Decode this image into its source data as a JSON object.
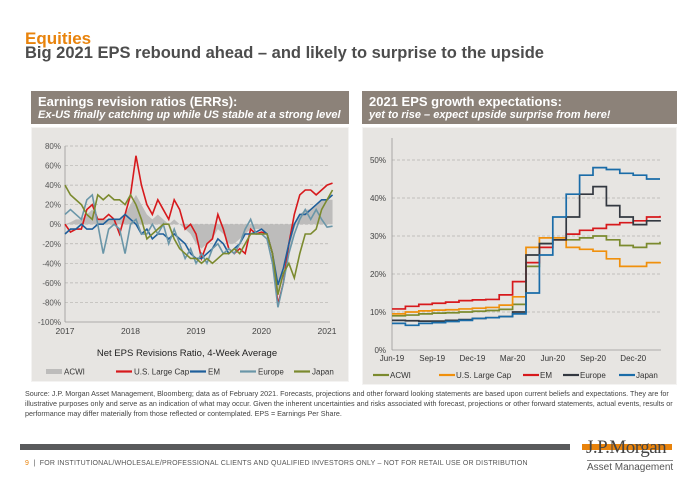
{
  "header": {
    "kicker": "Equities",
    "headline": "Big 2021 EPS rebound ahead – and likely to surprise to the upside"
  },
  "left_panel": {
    "title": "Earnings revision ratios (ERRs):",
    "subtitle": "Ex-US finally catching up while US stable at a strong level"
  },
  "right_panel": {
    "title": "2021 EPS growth expectations:",
    "subtitle": "yet to rise – expect upside surprise from here!"
  },
  "colors": {
    "acwi_area": "#bdbcbb",
    "us": "#d7191c",
    "em": "#1f5f9b",
    "europe": "#6a96a8",
    "japan": "#7b8a2e",
    "acwi_line": "#7b8a2e",
    "us_orange": "#f0900c",
    "europe_dark": "#333840",
    "japan_blue": "#1a6ca8"
  },
  "chart_data": [
    {
      "type": "line",
      "title": "Net EPS Revisions Ratio, 4-Week Average",
      "xlabel": "",
      "ylabel": "",
      "ylim": [
        -100,
        80
      ],
      "yticks": [
        "80%",
        "60%",
        "40%",
        "20%",
        "0%",
        "-20%",
        "-40%",
        "-60%",
        "-80%",
        "-100%"
      ],
      "ytick_values": [
        80,
        60,
        40,
        20,
        0,
        -20,
        -40,
        -60,
        -80,
        -100
      ],
      "xticks": [
        "2017",
        "2018",
        "2019",
        "2020",
        "2021"
      ],
      "x_start": "2017-01",
      "x_step": "month",
      "grid": true,
      "legend": "bottom",
      "series": [
        {
          "name": "ACWI",
          "style": "area",
          "color": "#bdbcbb",
          "values": [
            0,
            2,
            5,
            5,
            10,
            15,
            5,
            5,
            5,
            5,
            5,
            10,
            20,
            30,
            20,
            10,
            5,
            10,
            5,
            0,
            5,
            0,
            -5,
            -10,
            -20,
            -25,
            -20,
            -15,
            -5,
            -10,
            -20,
            -20,
            -15,
            -10,
            -5,
            -5,
            -5,
            -10,
            -35,
            -70,
            -55,
            -30,
            -5,
            10,
            15,
            15,
            20,
            25,
            25,
            25
          ]
        },
        {
          "name": "U.S. Large Cap",
          "color": "#d7191c",
          "values": [
            0,
            -8,
            -5,
            -5,
            15,
            20,
            5,
            5,
            10,
            5,
            -10,
            10,
            30,
            70,
            40,
            20,
            10,
            25,
            15,
            5,
            25,
            15,
            -5,
            0,
            -10,
            -35,
            -20,
            -15,
            10,
            -5,
            -25,
            -30,
            -25,
            -30,
            -5,
            -10,
            -8,
            -10,
            -30,
            -82,
            -60,
            -20,
            10,
            30,
            35,
            35,
            30,
            35,
            40,
            42
          ]
        },
        {
          "name": "EM",
          "color": "#1f5f9b",
          "values": [
            -10,
            -5,
            -5,
            0,
            -5,
            -5,
            0,
            0,
            5,
            5,
            5,
            10,
            5,
            0,
            -10,
            -5,
            -15,
            -10,
            -10,
            -15,
            -10,
            -15,
            -20,
            -30,
            -35,
            -35,
            -30,
            -25,
            -15,
            -20,
            -30,
            -25,
            -20,
            -10,
            -10,
            -8,
            -5,
            -10,
            -30,
            -62,
            -45,
            -20,
            0,
            10,
            10,
            15,
            20,
            25,
            25,
            30
          ]
        },
        {
          "name": "Europe",
          "color": "#6a96a8",
          "values": [
            10,
            15,
            10,
            5,
            25,
            30,
            0,
            -30,
            -5,
            0,
            -5,
            -30,
            0,
            5,
            -10,
            -10,
            0,
            -10,
            0,
            -20,
            -5,
            -20,
            -35,
            -25,
            -40,
            -30,
            -40,
            -25,
            -20,
            -30,
            -25,
            -30,
            -20,
            -5,
            5,
            -10,
            -10,
            -15,
            -40,
            -85,
            -60,
            -30,
            -10,
            5,
            15,
            5,
            15,
            5,
            -3,
            -2
          ]
        },
        {
          "name": "Japan",
          "color": "#7b8a2e",
          "values": [
            40,
            30,
            25,
            20,
            10,
            5,
            30,
            25,
            30,
            25,
            25,
            20,
            30,
            20,
            5,
            -15,
            -10,
            -5,
            0,
            0,
            -15,
            -25,
            -30,
            -35,
            -35,
            -40,
            -35,
            -40,
            -35,
            -30,
            -30,
            -25,
            -30,
            -20,
            -10,
            -10,
            -10,
            -10,
            -30,
            -72,
            -50,
            -40,
            -55,
            -30,
            -10,
            -10,
            -5,
            15,
            25,
            35
          ]
        }
      ]
    },
    {
      "type": "line",
      "title": "",
      "ylim": [
        0,
        50
      ],
      "yticks": [
        "50%",
        "40%",
        "30%",
        "20%",
        "10%",
        "0%"
      ],
      "ytick_values": [
        50,
        40,
        30,
        20,
        10,
        0
      ],
      "xticks": [
        "Jun-19",
        "Sep-19",
        "Dec-19",
        "Mar-20",
        "Jun-20",
        "Sep-20",
        "Dec-20"
      ],
      "xtick_months": [
        0,
        3,
        6,
        9,
        12,
        15,
        18
      ],
      "x_start": "2019-06",
      "x_step": "month",
      "grid": true,
      "legend": "bottom",
      "series": [
        {
          "name": "ACWI",
          "color": "#7b8a2e",
          "values": [
            9,
            9.2,
            9.5,
            9.7,
            9.8,
            10,
            10.2,
            10.4,
            10.7,
            12,
            22,
            28,
            29,
            29,
            29.5,
            30,
            29,
            27.5,
            27,
            28,
            28.5
          ]
        },
        {
          "name": "U.S. Large Cap",
          "color": "#f0900c",
          "values": [
            9.5,
            10,
            10.3,
            10.5,
            10.6,
            10.8,
            11,
            11.2,
            11.8,
            14,
            27,
            29.5,
            29.5,
            27,
            26.5,
            26,
            24,
            22,
            22,
            23,
            23.2
          ]
        },
        {
          "name": "EM",
          "color": "#d7191c",
          "values": [
            10.8,
            11.5,
            12,
            12.3,
            12.6,
            13,
            13.2,
            13.3,
            14.5,
            18,
            23,
            27,
            29,
            30.5,
            31.5,
            32,
            33,
            33.5,
            34,
            35,
            35.3
          ]
        },
        {
          "name": "Europe",
          "color": "#333840",
          "values": [
            7.8,
            7.7,
            7.6,
            7.6,
            7.8,
            8,
            8.3,
            8.5,
            8.8,
            10,
            25,
            28,
            29,
            35,
            41,
            43,
            38,
            35,
            33,
            34,
            34.2
          ]
        },
        {
          "name": "Japan",
          "color": "#1a6ca8",
          "values": [
            7,
            6.5,
            7,
            7.2,
            7.5,
            7.8,
            8.3,
            8.5,
            8.8,
            9.5,
            15,
            25,
            35,
            41,
            46,
            48,
            47.5,
            46.5,
            46,
            45,
            45
          ]
        }
      ]
    }
  ],
  "source": "Source: J.P. Morgan Asset Management, Bloomberg; data as of February 2021. Forecasts, projections and other forward looking statements are based upon current beliefs and expectations. They are for illustrative purposes only and serve as an indication of what may occur. Given the inherent uncertainties and risks associated with forecast, projections or other forward statements, actual events, results or performance may differ materially from those reflected or contemplated. EPS = Earnings Per Share.",
  "footer": {
    "page": "9",
    "separator": "|",
    "disclaimer": "FOR INSTITUTIONAL/WHOLESALE/PROFESSIONAL CLIENTS AND QUALIFIED INVESTORS ONLY – NOT FOR RETAIL USE OR DISTRIBUTION"
  },
  "logo": {
    "brand": "J.P.Morgan",
    "sub": "Asset Management"
  }
}
